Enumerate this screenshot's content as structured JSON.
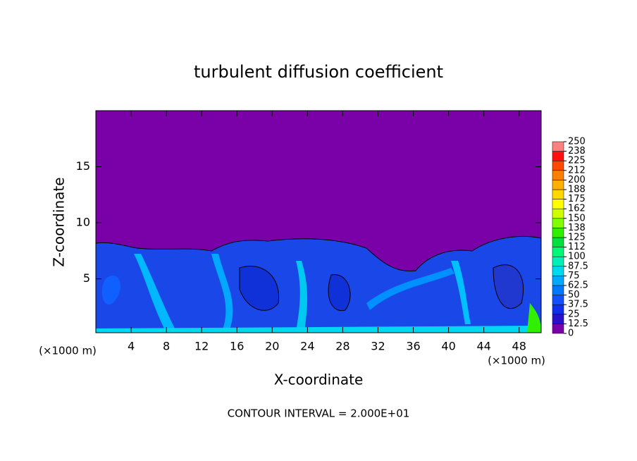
{
  "chart_data": {
    "type": "contour",
    "title": "turbulent diffusion coefficient",
    "x_label": "X-coordinate",
    "y_label": "Z-coordinate",
    "x_unit": "(×1000 m)",
    "y_unit": "(×1000 m)",
    "note": "CONTOUR INTERVAL = 2.000E+01",
    "xlim": [
      0,
      50.5
    ],
    "ylim": [
      0.2,
      20
    ],
    "xticks": [
      4,
      8,
      12,
      16,
      20,
      24,
      28,
      32,
      36,
      40,
      44,
      48
    ],
    "yticks": [
      5,
      10,
      15
    ],
    "colorbar": {
      "ticks": [
        0,
        12.5,
        25,
        37.5,
        50,
        62.5,
        75,
        87.5,
        100,
        {
          "value": 112.5,
          "label": "112"
        },
        125,
        {
          "value": 137.5,
          "label": "138"
        },
        150,
        {
          "value": 162.5,
          "label": "162"
        },
        175,
        {
          "value": 187.5,
          "label": "188"
        },
        200,
        {
          "value": 212.5,
          "label": "212"
        },
        225,
        {
          "value": 237.5,
          "label": "238"
        },
        250
      ],
      "colors": [
        "#7a00a8",
        "#2a10c8",
        "#1030e8",
        "#1050ff",
        "#0078ff",
        "#00a8ff",
        "#00d8f0",
        "#00f0b8",
        "#00f878",
        "#00e040",
        "#30f000",
        "#80ff00",
        "#d0ff00",
        "#ffff00",
        "#ffd800",
        "#ffb000",
        "#ff8000",
        "#ff4800",
        "#ff1010",
        "#ff8080"
      ]
    }
  }
}
